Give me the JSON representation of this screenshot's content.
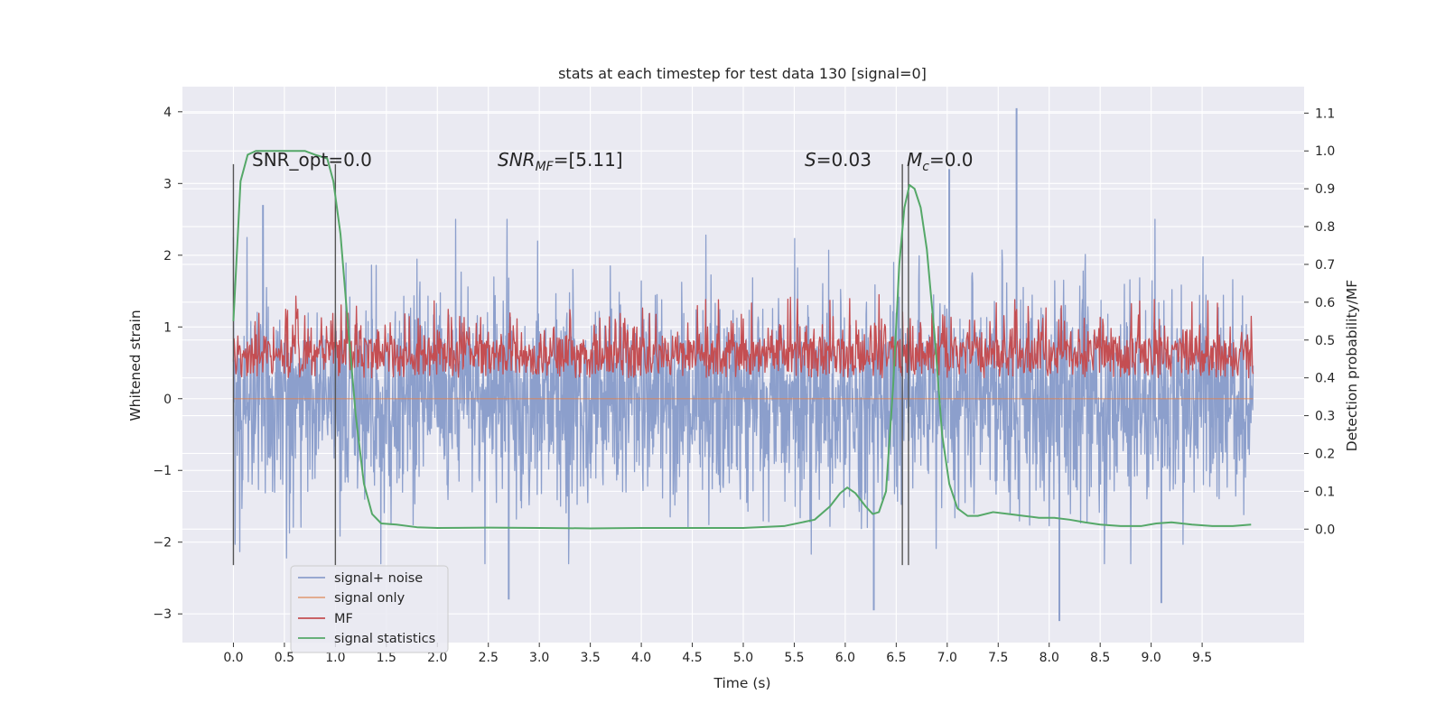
{
  "chart_data": {
    "type": "line",
    "title": "stats at each timestep for test data 130 [signal=0]",
    "xlabel": "Time (s)",
    "ylabel": "Whitened strain",
    "y2label": "Detection probability/MF",
    "xlim": [
      -0.5,
      10.5
    ],
    "ylim": [
      -3.4,
      4.35
    ],
    "y2lim": [
      -0.3,
      1.17
    ],
    "x_ticks": [
      "0.0",
      "0.5",
      "1.0",
      "1.5",
      "2.0",
      "2.5",
      "3.0",
      "3.5",
      "4.0",
      "4.5",
      "5.0",
      "5.5",
      "6.0",
      "6.5",
      "7.0",
      "7.5",
      "8.0",
      "8.5",
      "9.0",
      "9.5"
    ],
    "y_ticks": [
      "−3",
      "−2",
      "−1",
      "0",
      "1",
      "2",
      "3",
      "4"
    ],
    "y2_ticks": [
      "0.0",
      "0.1",
      "0.2",
      "0.3",
      "0.4",
      "0.5",
      "0.6",
      "0.7",
      "0.8",
      "0.9",
      "1.0",
      "1.1"
    ],
    "grid": true,
    "legend_position": "lower-left",
    "legend": [
      "signal+ noise",
      "signal only",
      "MF",
      "signal statistics"
    ],
    "colors": {
      "signal_noise": "#8c9fcc",
      "signal_only": "#dd8452",
      "mf": "#c44e52",
      "signal_statistics": "#55a868",
      "vlines": "#555555",
      "axes_bg": "#eaeaf2",
      "grid": "#ffffff"
    },
    "annotations": {
      "snr_opt": "SNR_opt=0.0",
      "snr_mf_base": "SNR",
      "snr_mf_sub": "MF",
      "snr_mf_value": "=[5.11]",
      "s_label": "S",
      "s_value": "=0.03",
      "mc_base": "M",
      "mc_sub": "c",
      "mc_value": "=0.0"
    },
    "vertical_lines_x": [
      0.0,
      1.0,
      6.56,
      6.62
    ],
    "vertical_lines_yrange": [
      -2.32,
      3.27
    ],
    "series": [
      {
        "name": "signal+ noise",
        "axis": "left",
        "x_range": [
          0.0,
          10.0
        ],
        "y_min": -3.1,
        "y_max": 4.05,
        "peaks": [
          [
            7.68,
            4.05
          ],
          [
            7.02,
            3.2
          ],
          [
            0.29,
            2.7
          ],
          [
            8.1,
            -3.1
          ],
          [
            6.28,
            -2.95
          ],
          [
            2.7,
            -2.8
          ],
          [
            9.1,
            -2.85
          ]
        ]
      },
      {
        "name": "signal only",
        "axis": "left",
        "x": [
          0.0,
          10.0
        ],
        "y": [
          0.0,
          0.0
        ]
      },
      {
        "name": "MF",
        "axis": "right",
        "x_range": [
          0.0,
          10.0
        ],
        "baseline": 0.41,
        "y_min": 0.4,
        "y_max": 0.63,
        "peaks": [
          [
            6.33,
            0.62
          ]
        ]
      },
      {
        "name": "signal statistics",
        "axis": "right",
        "x": [
          0.0,
          0.07,
          0.14,
          0.22,
          0.3,
          0.4,
          0.5,
          0.6,
          0.7,
          0.8,
          0.92,
          0.98,
          1.05,
          1.12,
          1.2,
          1.28,
          1.36,
          1.45,
          1.6,
          1.8,
          2.0,
          2.5,
          3.0,
          3.5,
          4.0,
          4.5,
          5.0,
          5.4,
          5.7,
          5.85,
          5.95,
          6.02,
          6.1,
          6.2,
          6.27,
          6.33,
          6.4,
          6.47,
          6.53,
          6.58,
          6.63,
          6.68,
          6.74,
          6.8,
          6.88,
          6.95,
          7.02,
          7.1,
          7.2,
          7.3,
          7.45,
          7.6,
          7.75,
          7.9,
          8.05,
          8.2,
          8.35,
          8.5,
          8.7,
          8.9,
          9.05,
          9.2,
          9.4,
          9.6,
          9.8,
          9.98
        ],
        "y": [
          0.55,
          0.92,
          0.99,
          1.0,
          1.0,
          1.0,
          1.0,
          1.0,
          1.0,
          0.99,
          0.98,
          0.92,
          0.78,
          0.55,
          0.3,
          0.12,
          0.04,
          0.015,
          0.012,
          0.005,
          0.003,
          0.004,
          0.003,
          0.002,
          0.003,
          0.003,
          0.003,
          0.008,
          0.025,
          0.06,
          0.095,
          0.11,
          0.095,
          0.06,
          0.04,
          0.045,
          0.1,
          0.38,
          0.7,
          0.85,
          0.91,
          0.9,
          0.85,
          0.74,
          0.5,
          0.25,
          0.12,
          0.055,
          0.035,
          0.035,
          0.045,
          0.04,
          0.035,
          0.03,
          0.03,
          0.025,
          0.018,
          0.012,
          0.008,
          0.008,
          0.015,
          0.018,
          0.012,
          0.008,
          0.008,
          0.012
        ]
      }
    ]
  }
}
